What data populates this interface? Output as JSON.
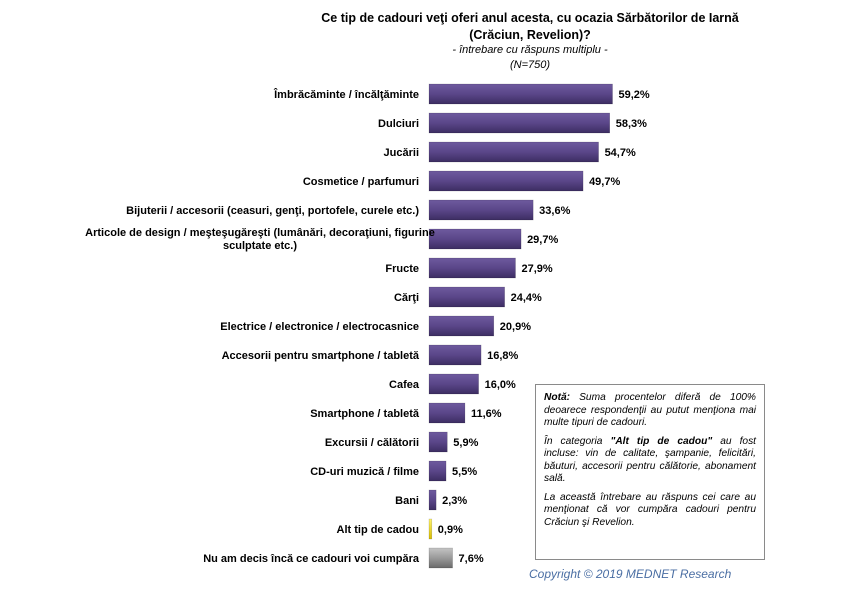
{
  "title_line1": "Ce tip de cadouri veţi oferi anul acesta, cu ocazia Sărbătorilor de Iarnă",
  "title_line2": "(Crăciun, Revelion)?",
  "subtitle_line1": "- întrebare cu răspuns multiplu -",
  "subtitle_line2": "(N=750)",
  "note": {
    "p1_bold": "Notă:",
    "p1_text": " Suma procentelor diferă de 100% deoarece respondenţii au putut menţiona mai multe tipuri de cadouri.",
    "p2_pre": "În categoria ",
    "p2_bold": "\"Alt tip de cadou\"",
    "p2_text": " au fost incluse: vin de calitate, şampanie, felicitări, băuturi, accesorii pentru călătorie, abonament sală.",
    "p3_text": "La această întrebare au răspuns cei care au menţionat că vor cumpăra cadouri pentru Crăciun şi Revelion."
  },
  "copyright": "Copyright ©  2019 MEDNET Research",
  "chart_data": {
    "type": "bar",
    "orientation": "horizontal",
    "categories": [
      "Îmbrăcăminte / încălţăminte",
      "Dulciuri",
      "Jucării",
      "Cosmetice / parfumuri",
      "Bijuterii / accesorii (ceasuri, genţi, portofele, curele etc.)",
      "Articole de design / meşteşugăreşti (lumânări, decoraţiuni, figurine sculptate etc.)",
      "Fructe",
      "Cărţi",
      "Electrice / electronice / electrocasnice",
      "Accesorii pentru smartphone / tabletă",
      "Cafea",
      "Smartphone / tabletă",
      "Excursii / călătorii",
      "CD-uri muzică / filme",
      "Bani",
      "Alt tip de cadou",
      "Nu am decis încă ce cadouri voi cumpăra"
    ],
    "label_lines": [
      [
        "Îmbrăcăminte / încălţăminte"
      ],
      [
        "Dulciuri"
      ],
      [
        "Jucării"
      ],
      [
        "Cosmetice / parfumuri"
      ],
      [
        "Bijuterii / accesorii (ceasuri, genţi, portofele, curele etc.)"
      ],
      [
        "Articole de design / meşteşugăreşti (lumânări, decoraţiuni, figurine",
        "sculptate etc.)"
      ],
      [
        "Fructe"
      ],
      [
        "Cărţi"
      ],
      [
        "Electrice / electronice / electrocasnice"
      ],
      [
        "Accesorii pentru smartphone / tabletă"
      ],
      [
        "Cafea"
      ],
      [
        "Smartphone / tabletă"
      ],
      [
        "Excursii / călătorii"
      ],
      [
        "CD-uri muzică / filme"
      ],
      [
        "Bani"
      ],
      [
        "Alt tip de cadou"
      ],
      [
        "Nu am decis încă ce cadouri voi cumpăra"
      ]
    ],
    "values": [
      59.2,
      58.3,
      54.7,
      49.7,
      33.6,
      29.7,
      27.9,
      24.4,
      20.9,
      16.8,
      16.0,
      11.6,
      5.9,
      5.5,
      2.3,
      0.9,
      7.6
    ],
    "value_labels": [
      "59,2%",
      "58,3%",
      "54,7%",
      "49,7%",
      "33,6%",
      "29,7%",
      "27,9%",
      "24,4%",
      "20,9%",
      "16,8%",
      "16,0%",
      "11,6%",
      "5,9%",
      "5,5%",
      "2,3%",
      "0,9%",
      "7,6%"
    ],
    "bar_colors": [
      "#5a4689",
      "#5a4689",
      "#5a4689",
      "#5a4689",
      "#5a4689",
      "#5a4689",
      "#5a4689",
      "#5a4689",
      "#5a4689",
      "#5a4689",
      "#5a4689",
      "#5a4689",
      "#5a4689",
      "#5a4689",
      "#5a4689",
      "#f2d600",
      "#9a9a9a"
    ],
    "xlim": [
      0,
      60
    ],
    "grid": false,
    "legend": "none"
  }
}
